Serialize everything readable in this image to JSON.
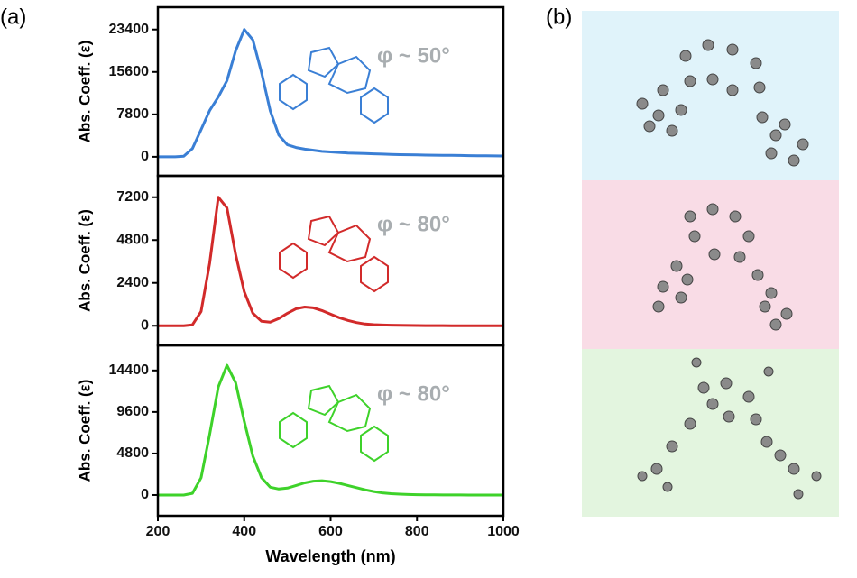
{
  "panel_labels": [
    "(a)",
    "(b)"
  ],
  "chart_data": [
    {
      "type": "line",
      "ylabel": "Abs. Coeff. (ε)",
      "annotation": "φ ~ 50°",
      "color": "#3a7fd5",
      "x": [
        200,
        220,
        240,
        260,
        280,
        300,
        320,
        340,
        360,
        380,
        400,
        420,
        440,
        460,
        480,
        500,
        520,
        540,
        560,
        580,
        600,
        620,
        640,
        660,
        680,
        700,
        720,
        740,
        760,
        780,
        800,
        820,
        840,
        860,
        880,
        900,
        920,
        940,
        960,
        980,
        1000
      ],
      "values": [
        0,
        0,
        0,
        100,
        1500,
        5000,
        8500,
        11000,
        14000,
        19500,
        23400,
        21500,
        15500,
        8500,
        4000,
        2200,
        1700,
        1400,
        1200,
        1000,
        900,
        800,
        700,
        650,
        600,
        550,
        500,
        450,
        400,
        380,
        350,
        320,
        300,
        280,
        260,
        240,
        220,
        200,
        180,
        160,
        150
      ],
      "xlim": [
        200,
        1000
      ],
      "ylim": [
        -3500,
        27500
      ],
      "yticks": [
        0,
        7800,
        15600,
        23400
      ]
    },
    {
      "type": "line",
      "ylabel": "Abs. Coeff. (ε)",
      "annotation": "φ ~ 80°",
      "color": "#d22a2a",
      "x": [
        200,
        220,
        240,
        260,
        280,
        300,
        320,
        340,
        360,
        380,
        400,
        420,
        440,
        460,
        480,
        500,
        520,
        540,
        560,
        580,
        600,
        620,
        640,
        660,
        680,
        700,
        720,
        740,
        760,
        780,
        800,
        820,
        840,
        860,
        880,
        900,
        920,
        940,
        960,
        980,
        1000
      ],
      "values": [
        0,
        0,
        0,
        0,
        50,
        800,
        3500,
        7200,
        6600,
        4000,
        1900,
        700,
        250,
        200,
        400,
        700,
        950,
        1050,
        1000,
        850,
        650,
        450,
        300,
        180,
        100,
        60,
        40,
        30,
        20,
        15,
        10,
        8,
        6,
        5,
        4,
        3,
        2,
        1,
        0,
        0,
        0
      ],
      "xlim": [
        200,
        1000
      ],
      "ylim": [
        -1100,
        8400
      ],
      "yticks": [
        0,
        2400,
        4800,
        7200
      ]
    },
    {
      "type": "line",
      "ylabel": "Abs. Coeff. (ε)",
      "annotation": "φ ~ 80°",
      "color": "#3ed22a",
      "x": [
        200,
        220,
        240,
        260,
        280,
        300,
        320,
        340,
        360,
        380,
        400,
        420,
        440,
        460,
        480,
        500,
        520,
        540,
        560,
        580,
        600,
        620,
        640,
        660,
        680,
        700,
        720,
        740,
        760,
        780,
        800,
        820,
        840,
        860,
        880,
        900,
        920,
        940,
        960,
        980,
        1000
      ],
      "values": [
        0,
        0,
        0,
        0,
        200,
        2000,
        7000,
        12500,
        15000,
        13000,
        8500,
        4500,
        2000,
        900,
        700,
        800,
        1100,
        1400,
        1600,
        1650,
        1550,
        1350,
        1100,
        850,
        600,
        400,
        250,
        150,
        100,
        60,
        40,
        25,
        15,
        10,
        5,
        3,
        2,
        1,
        0,
        0,
        0
      ],
      "xlim": [
        200,
        1000
      ],
      "ylim": [
        -2400,
        17300
      ],
      "yticks": [
        0,
        4800,
        9600,
        14400
      ],
      "xlabel": "Wavelength (nm)",
      "xticks": [
        200,
        400,
        600,
        800,
        1000
      ]
    }
  ]
}
